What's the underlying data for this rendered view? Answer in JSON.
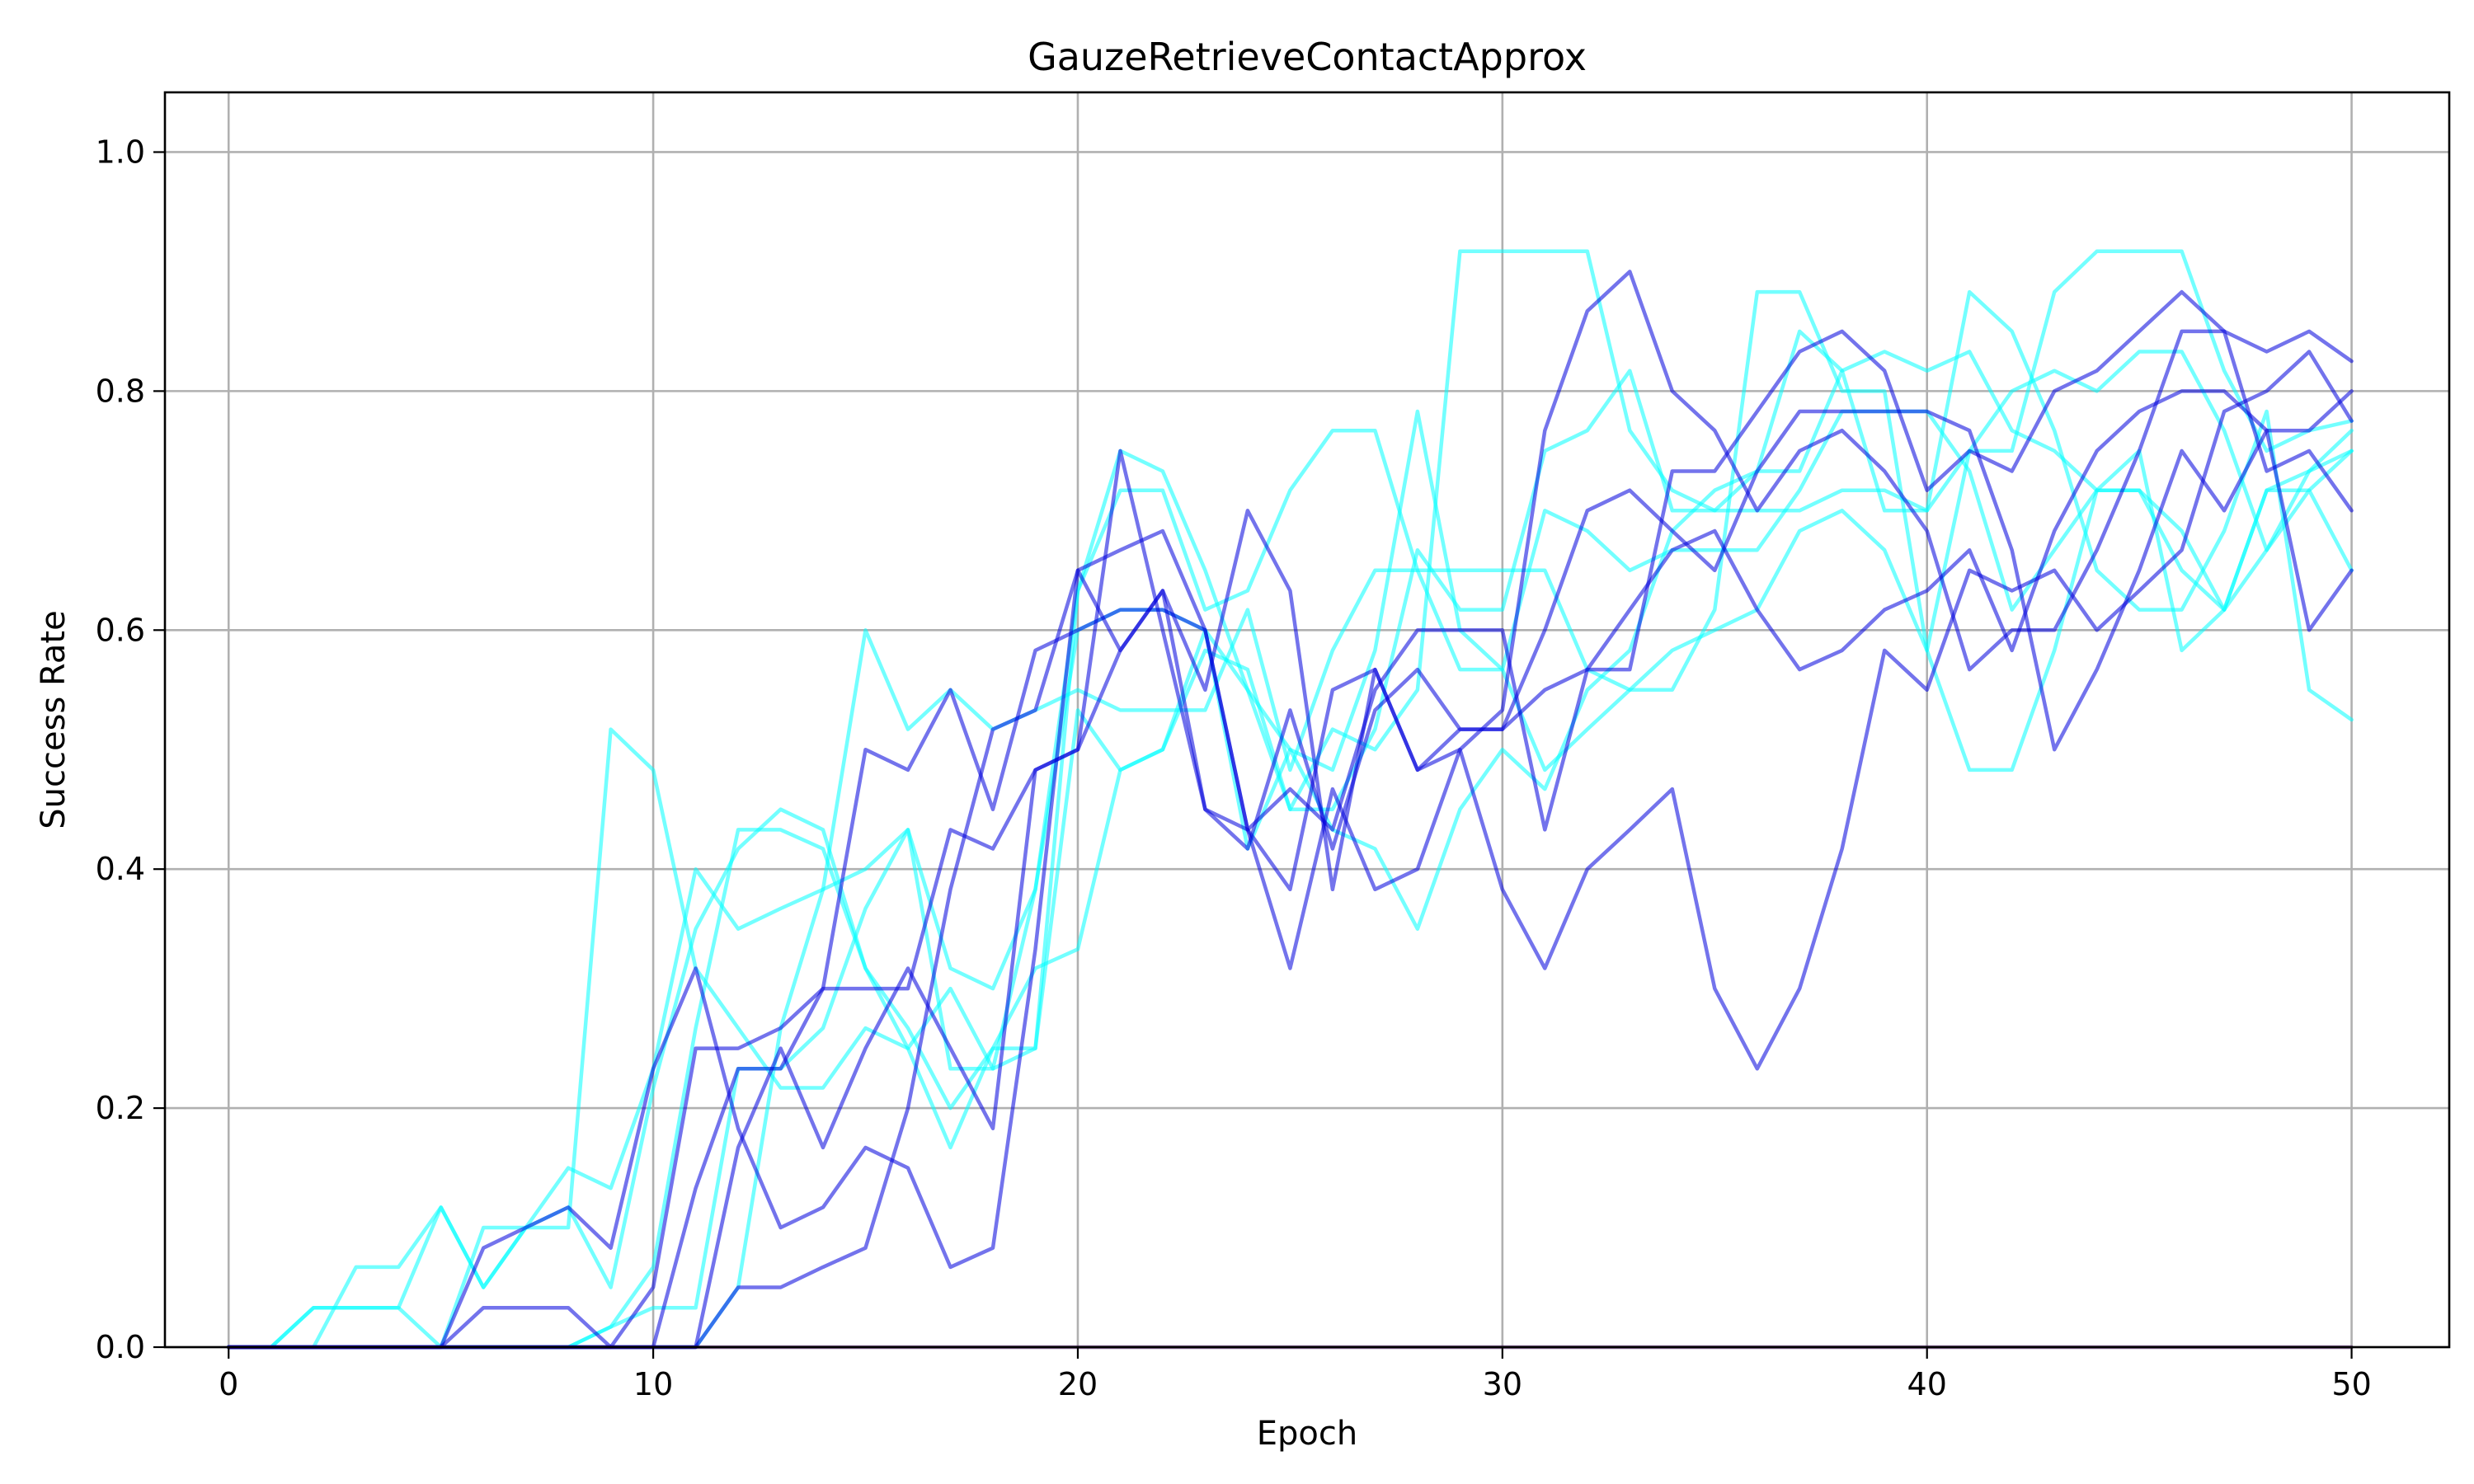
{
  "chart_data": {
    "type": "line",
    "title": "GauzeRetrieveContactApprox",
    "xlabel": "Epoch",
    "ylabel": "Success Rate",
    "xlim": [
      -1.5,
      52.3
    ],
    "ylim": [
      0,
      1.05
    ],
    "xticks": [
      "0",
      "10",
      "20",
      "30",
      "40",
      "50"
    ],
    "yticks": [
      "0.0",
      "0.2",
      "0.4",
      "0.6",
      "0.8",
      "1.0"
    ],
    "grid": true,
    "colors": {
      "group_a": "#00ffff",
      "group_b": "#0000dd",
      "baseline": "#3a0058"
    },
    "x": [
      0,
      1,
      2,
      3,
      4,
      5,
      6,
      7,
      8,
      9,
      10,
      11,
      12,
      13,
      14,
      15,
      16,
      17,
      18,
      19,
      20,
      21,
      22,
      23,
      24,
      25,
      26,
      27,
      28,
      29,
      30,
      31,
      32,
      33,
      34,
      35,
      36,
      37,
      38,
      39,
      40,
      41,
      42,
      43,
      44,
      45,
      46,
      47,
      48,
      49,
      50
    ],
    "series": [
      {
        "group": "a",
        "values": [
          0,
          0,
          0.033,
          0.033,
          0.033,
          0,
          0,
          0,
          0,
          0.017,
          0.067,
          0.267,
          0.433,
          0.433,
          0.417,
          0.317,
          0.25,
          0.3,
          0.233,
          0.25,
          0.633,
          0.75,
          0.733,
          0.65,
          0.55,
          0.45,
          0.45,
          0.517,
          0.667,
          0.617,
          0.617,
          0.75,
          0.767,
          0.817,
          0.7,
          0.7,
          0.733,
          0.85,
          0.817,
          0.833,
          0.817,
          0.833,
          0.767,
          0.75,
          0.717,
          0.717,
          0.683,
          0.617,
          0.717,
          0.733,
          0.75
        ]
      },
      {
        "group": "a",
        "values": [
          0,
          0,
          0,
          0,
          0,
          0,
          0,
          0,
          0,
          0,
          0,
          0,
          0.05,
          0.267,
          0.383,
          0.6,
          0.517,
          0.55,
          0.517,
          0.533,
          0.55,
          0.533,
          0.533,
          0.533,
          0.617,
          0.483,
          0.583,
          0.65,
          0.65,
          0.65,
          0.65,
          0.65,
          0.567,
          0.55,
          0.55,
          0.617,
          0.883,
          0.883,
          0.8,
          0.8,
          0.583,
          0.483,
          0.483,
          0.583,
          0.717,
          0.717,
          0.65,
          0.617,
          0.717,
          0.717,
          0.75
        ]
      },
      {
        "group": "a",
        "values": [
          0,
          0,
          0,
          0.067,
          0.067,
          0.117,
          0.05,
          0.1,
          0.15,
          0.133,
          0.233,
          0.4,
          0.35,
          0.367,
          0.383,
          0.4,
          0.433,
          0.317,
          0.3,
          0.383,
          0.633,
          0.717,
          0.717,
          0.617,
          0.633,
          0.717,
          0.767,
          0.767,
          0.65,
          0.567,
          0.567,
          0.483,
          0.517,
          0.55,
          0.583,
          0.6,
          0.617,
          0.683,
          0.7,
          0.667,
          0.583,
          0.75,
          0.8,
          0.817,
          0.8,
          0.833,
          0.833,
          0.767,
          0.667,
          0.733,
          0.767
        ]
      },
      {
        "group": "a",
        "values": [
          0,
          0,
          0.033,
          0.033,
          0.033,
          0.117,
          0.05,
          0.1,
          0.117,
          0.05,
          0.217,
          0.35,
          0.417,
          0.45,
          0.433,
          0.317,
          0.267,
          0.2,
          0.25,
          0.25,
          0.533,
          0.483,
          0.5,
          0.583,
          0.567,
          0.45,
          0.517,
          0.5,
          0.55,
          0.917,
          0.917,
          0.917,
          0.917,
          0.767,
          0.717,
          0.7,
          0.7,
          0.7,
          0.717,
          0.717,
          0.7,
          0.883,
          0.85,
          0.767,
          0.65,
          0.617,
          0.617,
          0.683,
          0.783,
          0.55,
          0.525
        ]
      },
      {
        "group": "a",
        "values": [
          0,
          0,
          0,
          0,
          0,
          0,
          0.1,
          0.1,
          0.1,
          0.517,
          0.483,
          0.317,
          0.267,
          0.217,
          0.217,
          0.267,
          0.25,
          0.167,
          0.25,
          0.317,
          0.333,
          0.483,
          0.5,
          0.6,
          0.417,
          0.5,
          0.433,
          0.417,
          0.35,
          0.45,
          0.5,
          0.467,
          0.55,
          0.583,
          0.683,
          0.717,
          0.733,
          0.733,
          0.817,
          0.7,
          0.7,
          0.75,
          0.75,
          0.883,
          0.917,
          0.917,
          0.917,
          0.817,
          0.75,
          0.767,
          0.775
        ]
      },
      {
        "group": "a",
        "values": [
          0,
          0,
          0,
          0,
          0,
          0,
          0,
          0,
          0,
          0.017,
          0.033,
          0.033,
          0.233,
          0.233,
          0.267,
          0.367,
          0.433,
          0.233,
          0.233,
          0.383,
          0.6,
          0.617,
          0.617,
          0.6,
          0.55,
          0.5,
          0.483,
          0.583,
          0.783,
          0.6,
          0.567,
          0.7,
          0.683,
          0.65,
          0.667,
          0.667,
          0.667,
          0.717,
          0.783,
          0.783,
          0.783,
          0.733,
          0.617,
          0.667,
          0.717,
          0.75,
          0.583,
          0.617,
          0.667,
          0.717,
          0.65
        ]
      },
      {
        "group": "b",
        "values": [
          0,
          0,
          0,
          0,
          0,
          0,
          0.083,
          0.1,
          0.117,
          0.083,
          0.233,
          0.317,
          0.183,
          0.1,
          0.117,
          0.167,
          0.15,
          0.067,
          0.083,
          0.333,
          0.65,
          0.667,
          0.683,
          0.6,
          0.433,
          0.467,
          0.433,
          0.55,
          0.6,
          0.6,
          0.6,
          0.433,
          0.567,
          0.567,
          0.733,
          0.733,
          0.783,
          0.833,
          0.85,
          0.817,
          0.717,
          0.75,
          0.733,
          0.8,
          0.817,
          0.85,
          0.883,
          0.85,
          0.833,
          0.85,
          0.825
        ]
      },
      {
        "group": "b",
        "values": [
          0,
          0,
          0,
          0,
          0,
          0,
          0,
          0,
          0,
          0,
          0,
          0,
          0.05,
          0.05,
          0.067,
          0.083,
          0.2,
          0.383,
          0.517,
          0.533,
          0.65,
          0.583,
          0.633,
          0.55,
          0.7,
          0.633,
          0.383,
          0.567,
          0.483,
          0.517,
          0.517,
          0.6,
          0.7,
          0.717,
          0.683,
          0.65,
          0.733,
          0.783,
          0.783,
          0.783,
          0.783,
          0.767,
          0.667,
          0.5,
          0.567,
          0.65,
          0.75,
          0.7,
          0.767,
          0.767,
          0.8
        ]
      },
      {
        "group": "b",
        "values": [
          0,
          0,
          0,
          0,
          0,
          0,
          0.033,
          0.033,
          0.033,
          0,
          0,
          0.133,
          0.233,
          0.233,
          0.3,
          0.3,
          0.3,
          0.433,
          0.417,
          0.483,
          0.5,
          0.583,
          0.633,
          0.45,
          0.433,
          0.383,
          0.55,
          0.567,
          0.483,
          0.5,
          0.383,
          0.317,
          0.4,
          0.433,
          0.467,
          0.3,
          0.233,
          0.3,
          0.417,
          0.583,
          0.55,
          0.65,
          0.633,
          0.65,
          0.6,
          0.633,
          0.667,
          0.783,
          0.8,
          0.833,
          0.775
        ]
      },
      {
        "group": "b",
        "values": [
          0,
          0,
          0,
          0,
          0,
          0,
          0,
          0,
          0,
          0,
          0.05,
          0.25,
          0.25,
          0.267,
          0.3,
          0.5,
          0.483,
          0.55,
          0.45,
          0.583,
          0.6,
          0.617,
          0.617,
          0.6,
          0.433,
          0.317,
          0.467,
          0.383,
          0.4,
          0.5,
          0.533,
          0.767,
          0.867,
          0.9,
          0.8,
          0.767,
          0.7,
          0.75,
          0.767,
          0.733,
          0.683,
          0.567,
          0.6,
          0.6,
          0.667,
          0.75,
          0.85,
          0.85,
          0.733,
          0.75,
          0.7
        ]
      },
      {
        "group": "b",
        "values": [
          0,
          0,
          0,
          0,
          0,
          0,
          0,
          0,
          0,
          0,
          0,
          0,
          0.167,
          0.25,
          0.167,
          0.25,
          0.317,
          0.25,
          0.183,
          0.483,
          0.5,
          0.75,
          0.6,
          0.45,
          0.417,
          0.533,
          0.417,
          0.533,
          0.567,
          0.517,
          0.517,
          0.55,
          0.567,
          0.617,
          0.667,
          0.683,
          0.617,
          0.567,
          0.583,
          0.617,
          0.633,
          0.667,
          0.583,
          0.683,
          0.75,
          0.783,
          0.8,
          0.8,
          0.767,
          0.6,
          0.65
        ]
      },
      {
        "group": "baseline",
        "values": [
          0,
          0,
          0,
          0,
          0,
          0,
          0,
          0,
          0,
          0,
          0,
          0,
          0,
          0,
          0,
          0,
          0,
          0,
          0,
          0,
          0,
          0,
          0,
          0,
          0,
          0,
          0,
          0,
          0,
          0,
          0,
          0,
          0,
          0,
          0,
          0,
          0,
          0,
          0,
          0,
          0,
          0,
          0,
          0,
          0,
          0,
          0,
          0,
          0,
          0,
          0
        ]
      }
    ]
  }
}
